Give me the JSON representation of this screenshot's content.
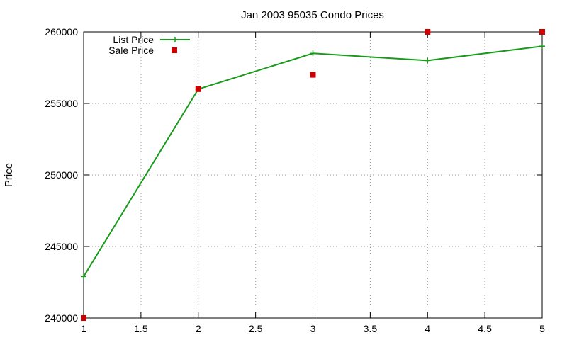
{
  "chart_data": {
    "type": "line",
    "title": "Jan 2003 95035 Condo Prices",
    "xlabel": "",
    "ylabel": "Price",
    "xlim": [
      1,
      5
    ],
    "ylim": [
      240000,
      260000
    ],
    "x_ticks": [
      1,
      1.5,
      2,
      2.5,
      3,
      3.5,
      4,
      4.5,
      5
    ],
    "y_ticks": [
      240000,
      245000,
      250000,
      255000,
      260000
    ],
    "grid": true,
    "legend_position": "top-left",
    "series": [
      {
        "name": "List Price",
        "style": "line-with-plus-markers",
        "color": "#1a9a1a",
        "x": [
          1,
          2,
          3,
          4,
          5
        ],
        "y": [
          242900,
          256000,
          258500,
          258000,
          259000
        ]
      },
      {
        "name": "Sale Price",
        "style": "square-markers",
        "color": "#cc0000",
        "x": [
          1,
          2,
          3,
          4,
          5
        ],
        "y": [
          240000,
          256000,
          257000,
          260000,
          260000
        ]
      }
    ]
  }
}
